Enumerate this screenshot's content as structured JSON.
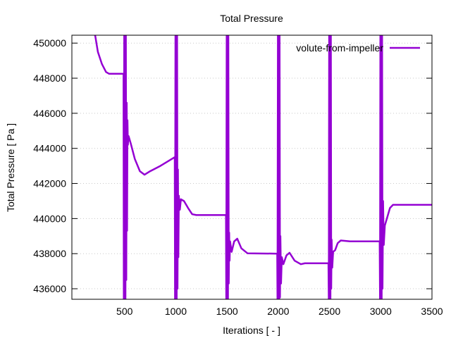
{
  "chart_data": {
    "type": "line",
    "title": "Total Pressure",
    "xlabel": "Iterations [ - ]",
    "ylabel": "Total Pressure [ Pa ]",
    "xlim": [
      0,
      3500
    ],
    "ylim": [
      435400,
      450450
    ],
    "xticks": [
      500,
      1000,
      1500,
      2000,
      2500,
      3000,
      3500
    ],
    "yticks": [
      436000,
      438000,
      440000,
      442000,
      444000,
      446000,
      448000,
      450000
    ],
    "grid": true,
    "legend_position": "top-right",
    "series": [
      {
        "name": "volute-from-impeller",
        "color": "#9400d3",
        "points": [
          [
            180,
            455000
          ],
          [
            213,
            450450
          ],
          [
            240,
            449500
          ],
          [
            280,
            448800
          ],
          [
            320,
            448350
          ],
          [
            350,
            448250
          ],
          [
            490,
            448250
          ],
          [
            493,
            430000
          ],
          [
            497,
            455000
          ],
          [
            501,
            430000
          ],
          [
            505,
            455000
          ],
          [
            509,
            430000
          ],
          [
            513,
            455000
          ],
          [
            517,
            436500
          ],
          [
            521,
            446600
          ],
          [
            525,
            439300
          ],
          [
            529,
            445600
          ],
          [
            533,
            444200
          ],
          [
            540,
            444700
          ],
          [
            560,
            444300
          ],
          [
            600,
            443400
          ],
          [
            650,
            442700
          ],
          [
            695,
            442500
          ],
          [
            750,
            442700
          ],
          [
            850,
            443000
          ],
          [
            990,
            443500
          ],
          [
            993,
            430000
          ],
          [
            997,
            455000
          ],
          [
            1001,
            430000
          ],
          [
            1005,
            455000
          ],
          [
            1009,
            430000
          ],
          [
            1013,
            455000
          ],
          [
            1017,
            436000
          ],
          [
            1021,
            442800
          ],
          [
            1025,
            437800
          ],
          [
            1030,
            441300
          ],
          [
            1040,
            440500
          ],
          [
            1050,
            441100
          ],
          [
            1080,
            441000
          ],
          [
            1120,
            440600
          ],
          [
            1160,
            440250
          ],
          [
            1200,
            440200
          ],
          [
            1490,
            440200
          ],
          [
            1493,
            430000
          ],
          [
            1497,
            455000
          ],
          [
            1501,
            430000
          ],
          [
            1505,
            455000
          ],
          [
            1509,
            430000
          ],
          [
            1513,
            455000
          ],
          [
            1517,
            436300
          ],
          [
            1521,
            439200
          ],
          [
            1525,
            437600
          ],
          [
            1530,
            438700
          ],
          [
            1545,
            438100
          ],
          [
            1570,
            438700
          ],
          [
            1600,
            438850
          ],
          [
            1640,
            438300
          ],
          [
            1700,
            438020
          ],
          [
            1990,
            438000
          ],
          [
            1993,
            430000
          ],
          [
            1997,
            455000
          ],
          [
            2001,
            430000
          ],
          [
            2005,
            455000
          ],
          [
            2009,
            430000
          ],
          [
            2013,
            455000
          ],
          [
            2017,
            435500
          ],
          [
            2021,
            439000
          ],
          [
            2027,
            436300
          ],
          [
            2035,
            437800
          ],
          [
            2050,
            437400
          ],
          [
            2080,
            437900
          ],
          [
            2110,
            438050
          ],
          [
            2160,
            437600
          ],
          [
            2220,
            437400
          ],
          [
            2260,
            437450
          ],
          [
            2490,
            437450
          ],
          [
            2493,
            430000
          ],
          [
            2497,
            455000
          ],
          [
            2501,
            430000
          ],
          [
            2505,
            455000
          ],
          [
            2509,
            430000
          ],
          [
            2513,
            455000
          ],
          [
            2517,
            436000
          ],
          [
            2521,
            438800
          ],
          [
            2527,
            437200
          ],
          [
            2535,
            438100
          ],
          [
            2555,
            438200
          ],
          [
            2580,
            438600
          ],
          [
            2610,
            438750
          ],
          [
            2700,
            438700
          ],
          [
            2990,
            438700
          ],
          [
            2993,
            430000
          ],
          [
            2997,
            455000
          ],
          [
            3001,
            430000
          ],
          [
            3005,
            455000
          ],
          [
            3009,
            430000
          ],
          [
            3013,
            455000
          ],
          [
            3017,
            436000
          ],
          [
            3023,
            441000
          ],
          [
            3030,
            438500
          ],
          [
            3040,
            439600
          ],
          [
            3060,
            440000
          ],
          [
            3090,
            440600
          ],
          [
            3120,
            440780
          ],
          [
            3200,
            440780
          ],
          [
            3500,
            440780
          ]
        ]
      }
    ]
  }
}
